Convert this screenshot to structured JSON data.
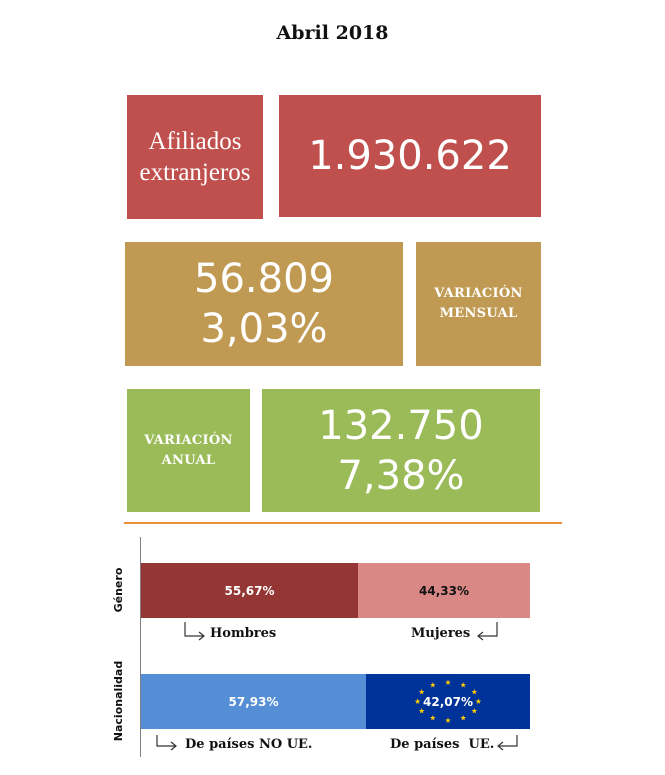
{
  "title": "Abril 2018",
  "tiles": {
    "affiliates_label_line1": "Afiliados",
    "affiliates_label_line2": "extranjeros",
    "affiliates_value": "1.930.622",
    "monthly_value": "56.809",
    "monthly_pct": "3,03%",
    "monthly_label_line1": "VARIACIÓN",
    "monthly_label_line2": "MENSUAL",
    "annual_label_line1": "VARIACIÓN",
    "annual_label_line2": "ANUAL",
    "annual_value": "132.750",
    "annual_pct": "7,38%"
  },
  "colors": {
    "tile_red": "#c0504d",
    "tile_gold": "#c09a52",
    "tile_green": "#9bbb59",
    "divider": "#e8913a",
    "hombres": "#943634",
    "mujeres": "#d98886",
    "no_ue": "#558ed5",
    "ue": "#003399",
    "eu_stars": "#ffcc00"
  },
  "chart_data": {
    "type": "bar",
    "orientation": "horizontal-stacked-100",
    "categories": [
      "Género",
      "Nacionalidad"
    ],
    "series": [
      {
        "category": "Género",
        "segments": [
          {
            "name": "Hombres",
            "value": 55.67,
            "label": "55,67%"
          },
          {
            "name": "Mujeres",
            "value": 44.33,
            "label": "44,33%"
          }
        ]
      },
      {
        "category": "Nacionalidad",
        "segments": [
          {
            "name": "De países NO UE.",
            "value": 57.93,
            "label": "57,93%"
          },
          {
            "name": "De países  UE.",
            "value": 42.07,
            "label": "42,07%"
          }
        ]
      }
    ]
  }
}
